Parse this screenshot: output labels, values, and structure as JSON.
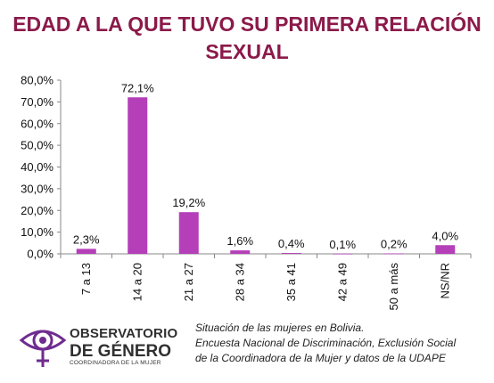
{
  "title_line1": "EDAD A LA QUE TUVO SU PRIMERA RELACIÓN",
  "title_line2": "SEXUAL",
  "chart_data": {
    "type": "bar",
    "categories": [
      "7 a 13",
      "14 a 20",
      "21 a 27",
      "28 a 34",
      "35 a 41",
      "42 a 49",
      "50 a más",
      "NS/NR"
    ],
    "values": [
      2.3,
      72.1,
      19.2,
      1.6,
      0.4,
      0.1,
      0.2,
      4.0
    ],
    "data_labels": [
      "2,3%",
      "72,1%",
      "19,2%",
      "1,6%",
      "0,4%",
      "0,1%",
      "0,2%",
      "4,0%"
    ],
    "yticks": [
      "0,0%",
      "10,0%",
      "20,0%",
      "30,0%",
      "40,0%",
      "50,0%",
      "60,0%",
      "70,0%",
      "80,0%"
    ],
    "ylim": [
      0,
      80
    ],
    "bar_color": "#b43fb9",
    "grid": false
  },
  "logo": {
    "line1": "OBSERVATORIO",
    "line2": "DE GÉNERO",
    "line3": "COORDINADORA DE LA MUJER",
    "icon": "eye-venus-symbol-icon",
    "color": "#6f2c8f"
  },
  "source": {
    "line1": "Situación de las mujeres en Bolivia.",
    "line2": "Encuesta Nacional de Discriminación, Exclusión Social",
    "line3": "de la Coordinadora de la Mujer y datos de la UDAPE"
  }
}
